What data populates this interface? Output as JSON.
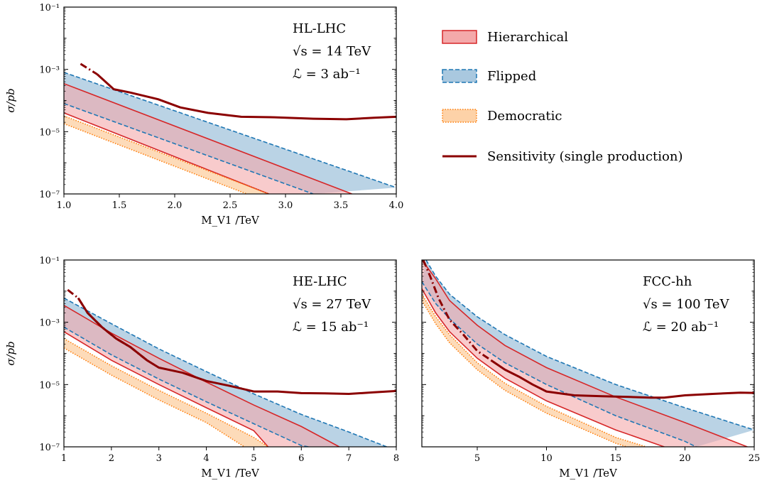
{
  "legend": {
    "placement": "right of top panel",
    "entries": [
      {
        "key": "hierarchical",
        "label": "Hierarchical"
      },
      {
        "key": "flipped",
        "label": "Flipped"
      },
      {
        "key": "democratic",
        "label": "Democratic"
      },
      {
        "key": "sensitivity",
        "label": "Sensitivity (single production)"
      }
    ]
  },
  "colors": {
    "hierarchical_line": "#d62728",
    "hierarchical_fill": "#f4a9aa",
    "flipped_line": "#1f77b4",
    "flipped_fill": "#a9c8df",
    "democratic_line": "#ff7f0e",
    "democratic_fill": "#fdd2a8",
    "sensitivity": "#8b0000"
  },
  "chart_data": [
    {
      "id": "hl",
      "type": "area",
      "annotation": {
        "collider": "HL-LHC",
        "energy": "√s = 14 TeV",
        "lumi": "ℒ = 3 ab⁻¹"
      },
      "xlabel": "M_V1 /TeV",
      "ylabel": "σ/pb",
      "xlim": [
        1.0,
        4.0
      ],
      "ylim": [
        1e-07,
        0.1
      ],
      "yscale": "log",
      "xticks": [
        1.0,
        1.5,
        2.0,
        2.5,
        3.0,
        3.5,
        4.0
      ],
      "xtick_labels": [
        "1.0",
        "1.5",
        "2.0",
        "2.5",
        "3.0",
        "3.5",
        "4.0"
      ],
      "yticks": [
        1e-07,
        1e-05,
        0.001,
        0.1
      ],
      "ytick_labels": [
        "10⁻⁷",
        "10⁻⁵",
        "10⁻³",
        "10⁻¹"
      ],
      "bands": [
        {
          "key": "flipped",
          "upper": [
            [
              1.0,
              0.0008
            ],
            [
              4.0,
              1.6e-07
            ]
          ],
          "lower": [
            [
              1.0,
              8e-05
            ],
            [
              3.25,
              1e-07
            ]
          ]
        },
        {
          "key": "hierarchical",
          "upper": [
            [
              1.0,
              0.00035
            ],
            [
              3.6,
              1e-07
            ]
          ],
          "lower": [
            [
              1.0,
              4e-05
            ],
            [
              2.85,
              1e-07
            ]
          ]
        },
        {
          "key": "democratic",
          "upper": [
            [
              1.0,
              3.2e-05
            ],
            [
              2.85,
              1e-07
            ]
          ],
          "lower": [
            [
              1.0,
              1.8e-05
            ],
            [
              2.65,
              1e-07
            ]
          ]
        }
      ],
      "sensitivity_dashdot": [
        [
          1.15,
          0.0015
        ],
        [
          1.3,
          0.0007
        ]
      ],
      "sensitivity_solid": [
        [
          1.3,
          0.0007
        ],
        [
          1.45,
          0.00023
        ],
        [
          1.6,
          0.00018
        ],
        [
          1.85,
          0.00011
        ],
        [
          2.05,
          6e-05
        ],
        [
          2.3,
          4e-05
        ],
        [
          2.6,
          3e-05
        ],
        [
          2.9,
          2.9e-05
        ],
        [
          3.25,
          2.6e-05
        ],
        [
          3.55,
          2.5e-05
        ],
        [
          3.8,
          2.8e-05
        ],
        [
          4.0,
          3e-05
        ]
      ]
    },
    {
      "id": "he",
      "type": "area",
      "annotation": {
        "collider": "HE-LHC",
        "energy": "√s = 27 TeV",
        "lumi": "ℒ = 15 ab⁻¹"
      },
      "xlabel": "M_V1 /TeV",
      "ylabel": "σ/pb",
      "xlim": [
        1,
        8
      ],
      "ylim": [
        1e-07,
        0.1
      ],
      "yscale": "log",
      "xticks": [
        1,
        2,
        3,
        4,
        5,
        6,
        7,
        8
      ],
      "xtick_labels": [
        "1",
        "2",
        "3",
        "4",
        "5",
        "6",
        "7",
        "8"
      ],
      "yticks": [
        1e-07,
        1e-05,
        0.001,
        0.1
      ],
      "ytick_labels": [
        "10⁻⁷",
        "10⁻⁵",
        "10⁻³",
        "10⁻¹"
      ],
      "bands": [
        {
          "key": "flipped",
          "upper": [
            [
              1,
              0.006
            ],
            [
              2,
              0.0009
            ],
            [
              3,
              0.00014
            ],
            [
              4,
              2.6e-05
            ],
            [
              5,
              5e-06
            ],
            [
              6,
              1.1e-06
            ],
            [
              7,
              3e-07
            ],
            [
              7.8,
              1e-07
            ]
          ],
          "lower": [
            [
              1,
              0.0007
            ],
            [
              2,
              9e-05
            ],
            [
              3,
              1.5e-05
            ],
            [
              4,
              2.8e-06
            ],
            [
              5,
              5.5e-07
            ],
            [
              6,
              1.1e-07
            ],
            [
              6.15,
              1e-07
            ]
          ]
        },
        {
          "key": "hierarchical",
          "upper": [
            [
              1,
              0.0035
            ],
            [
              2,
              0.00045
            ],
            [
              3,
              7e-05
            ],
            [
              4,
              1.2e-05
            ],
            [
              5,
              2.2e-06
            ],
            [
              6,
              4.5e-07
            ],
            [
              6.8,
              1e-07
            ]
          ],
          "lower": [
            [
              1,
              0.0005
            ],
            [
              2,
              6e-05
            ],
            [
              3,
              1e-05
            ],
            [
              4,
              1.8e-06
            ],
            [
              5,
              3.3e-07
            ],
            [
              5.3,
              1e-07
            ]
          ]
        },
        {
          "key": "democratic",
          "upper": [
            [
              1,
              0.0003
            ],
            [
              2,
              4e-05
            ],
            [
              3,
              6.5e-06
            ],
            [
              4,
              1.2e-06
            ],
            [
              5,
              2e-07
            ],
            [
              5.3,
              1e-07
            ]
          ],
          "lower": [
            [
              1,
              0.00015
            ],
            [
              2,
              2e-05
            ],
            [
              3,
              3.2e-06
            ],
            [
              4,
              6e-07
            ],
            [
              4.8,
              1e-07
            ]
          ]
        }
      ],
      "sensitivity_dashdot": [
        [
          1.08,
          0.011
        ],
        [
          1.3,
          0.006
        ],
        [
          1.5,
          0.002
        ],
        [
          1.8,
          0.0007
        ],
        [
          2.1,
          0.0003
        ],
        [
          2.4,
          0.00016
        ],
        [
          2.75,
          6e-05
        ]
      ],
      "sensitivity_solid": [
        [
          1.3,
          0.006
        ],
        [
          1.5,
          0.002
        ],
        [
          1.8,
          0.0007
        ],
        [
          2.1,
          0.0003
        ],
        [
          2.4,
          0.00016
        ],
        [
          2.75,
          6e-05
        ],
        [
          3,
          3.5e-05
        ],
        [
          3.5,
          2.4e-05
        ],
        [
          4,
          1.3e-05
        ],
        [
          4.5,
          9e-06
        ],
        [
          5,
          6e-06
        ],
        [
          5.5,
          6e-06
        ],
        [
          6,
          5.3e-06
        ],
        [
          6.5,
          5.2e-06
        ],
        [
          7,
          5e-06
        ],
        [
          7.5,
          5.6e-06
        ],
        [
          8,
          6.2e-06
        ]
      ]
    },
    {
      "id": "fcc",
      "type": "area",
      "annotation": {
        "collider": "FCC-hh",
        "energy": "√s = 100 TeV",
        "lumi": "ℒ = 20 ab⁻¹"
      },
      "xlabel": "M_V1 /TeV",
      "ylabel": "",
      "xlim": [
        1,
        25
      ],
      "ylim": [
        1e-07,
        0.1
      ],
      "yscale": "log",
      "xticks": [
        5,
        10,
        15,
        20,
        25
      ],
      "xtick_labels": [
        "5",
        "10",
        "15",
        "20",
        "25"
      ],
      "yticks": [
        1e-07,
        1e-05,
        0.001,
        0.1
      ],
      "ytick_labels": [],
      "bands": [
        {
          "key": "flipped",
          "upper": [
            [
              1.3,
              0.1
            ],
            [
              2,
              0.03
            ],
            [
              3,
              0.008
            ],
            [
              5,
              0.0015
            ],
            [
              7,
              0.0004
            ],
            [
              10,
              8e-05
            ],
            [
              15,
              1e-05
            ],
            [
              20,
              1.8e-06
            ],
            [
              25,
              3.5e-07
            ]
          ],
          "lower": [
            [
              1,
              0.02
            ],
            [
              2,
              0.004
            ],
            [
              3,
              0.0013
            ],
            [
              5,
              0.0002
            ],
            [
              7,
              5e-05
            ],
            [
              10,
              1e-05
            ],
            [
              15,
              1e-06
            ],
            [
              20,
              1.5e-07
            ],
            [
              20.8,
              1e-07
            ]
          ]
        },
        {
          "key": "hierarchical",
          "upper": [
            [
              1,
              0.1
            ],
            [
              2,
              0.025
            ],
            [
              3,
              0.005
            ],
            [
              5,
              0.0008
            ],
            [
              7,
              0.00018
            ],
            [
              10,
              3.5e-05
            ],
            [
              15,
              4e-06
            ],
            [
              20,
              6e-07
            ],
            [
              24.5,
              1e-07
            ]
          ],
          "lower": [
            [
              1,
              0.012
            ],
            [
              2,
              0.002
            ],
            [
              3,
              0.0005
            ],
            [
              5,
              7e-05
            ],
            [
              7,
              1.6e-05
            ],
            [
              10,
              3e-06
            ],
            [
              15,
              3.5e-07
            ],
            [
              18.5,
              1e-07
            ]
          ]
        },
        {
          "key": "democratic",
          "upper": [
            [
              1,
              0.008
            ],
            [
              2,
              0.0015
            ],
            [
              3,
              0.0004
            ],
            [
              5,
              5e-05
            ],
            [
              7,
              1.1e-05
            ],
            [
              10,
              2e-06
            ],
            [
              15,
              2e-07
            ],
            [
              17.2,
              1e-07
            ]
          ],
          "lower": [
            [
              1,
              0.005
            ],
            [
              2,
              0.0009
            ],
            [
              3,
              0.00022
            ],
            [
              5,
              3e-05
            ],
            [
              7,
              6.5e-06
            ],
            [
              10,
              1.2e-06
            ],
            [
              15,
              1.3e-07
            ],
            [
              15.8,
              1e-07
            ]
          ]
        }
      ],
      "sensitivity_dashdot": [
        [
          1.1,
          0.1
        ],
        [
          1.6,
          0.03
        ],
        [
          2.2,
          0.006
        ],
        [
          3,
          0.0012
        ],
        [
          4,
          0.0004
        ],
        [
          5,
          0.00012
        ],
        [
          6,
          6e-05
        ]
      ],
      "sensitivity_solid": [
        [
          6,
          6e-05
        ],
        [
          7,
          3e-05
        ],
        [
          8,
          1.8e-05
        ],
        [
          9,
          1e-05
        ],
        [
          10,
          6e-06
        ],
        [
          12,
          4.5e-06
        ],
        [
          14,
          4.2e-06
        ],
        [
          16,
          4e-06
        ],
        [
          17.5,
          3.8e-06
        ],
        [
          18.5,
          3.8e-06
        ],
        [
          20,
          4.5e-06
        ],
        [
          22,
          5e-06
        ],
        [
          24,
          5.5e-06
        ],
        [
          25,
          5.4e-06
        ]
      ]
    }
  ]
}
